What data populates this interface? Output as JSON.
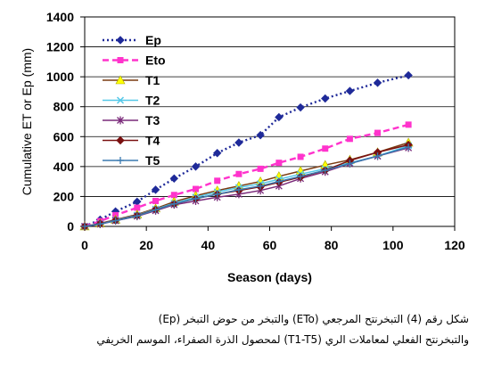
{
  "chart_data": {
    "type": "line",
    "xlabel": "Season (days)",
    "ylabel": "Cumulative ET or Ep (mm)",
    "xlim": [
      0,
      120
    ],
    "ylim": [
      0,
      1400
    ],
    "xticks": [
      "0",
      "20",
      "40",
      "60",
      "80",
      "100",
      "120"
    ],
    "yticks": [
      "0",
      "200",
      "400",
      "600",
      "800",
      "1000",
      "1200",
      "1400"
    ],
    "grid": "horizontal",
    "legend": "upper-left",
    "series": [
      {
        "name": "Ep",
        "color": "#1f2a99",
        "marker": "diamond",
        "dash": "dotted",
        "x": [
          0,
          5,
          10,
          17,
          23,
          29,
          36,
          43,
          50,
          57,
          63,
          70,
          78,
          86,
          95,
          105
        ],
        "y": [
          0,
          45,
          100,
          165,
          245,
          320,
          400,
          490,
          560,
          610,
          730,
          795,
          855,
          905,
          960,
          1010
        ]
      },
      {
        "name": "Eto",
        "color": "#ff33cc",
        "marker": "square",
        "dash": "dashed",
        "x": [
          0,
          5,
          10,
          17,
          23,
          29,
          36,
          43,
          50,
          57,
          63,
          70,
          78,
          86,
          95,
          105
        ],
        "y": [
          0,
          35,
          75,
          125,
          170,
          210,
          250,
          305,
          350,
          385,
          425,
          465,
          520,
          585,
          625,
          680
        ]
      },
      {
        "name": "T1",
        "color": "#7a3b10",
        "marker": "triangle",
        "dash": "solid",
        "x": [
          0,
          5,
          10,
          17,
          23,
          29,
          36,
          43,
          50,
          57,
          63,
          70,
          78,
          86,
          95,
          105
        ],
        "y": [
          0,
          20,
          45,
          80,
          120,
          165,
          205,
          240,
          270,
          300,
          335,
          370,
          410,
          445,
          495,
          560
        ]
      },
      {
        "name": "T2",
        "color": "#55c8e8",
        "marker": "x",
        "dash": "solid",
        "x": [
          0,
          5,
          10,
          17,
          23,
          29,
          36,
          43,
          50,
          57,
          63,
          70,
          78,
          86,
          95,
          105
        ],
        "y": [
          0,
          18,
          42,
          75,
          115,
          155,
          195,
          230,
          260,
          285,
          315,
          350,
          385,
          425,
          470,
          540
        ]
      },
      {
        "name": "T3",
        "color": "#7a2a7a",
        "marker": "star",
        "dash": "solid",
        "x": [
          0,
          5,
          10,
          17,
          23,
          29,
          36,
          43,
          50,
          57,
          63,
          70,
          78,
          86,
          95,
          105
        ],
        "y": [
          0,
          15,
          38,
          68,
          105,
          145,
          170,
          195,
          215,
          240,
          270,
          320,
          365,
          420,
          470,
          525
        ]
      },
      {
        "name": "T4",
        "color": "#7a1010",
        "marker": "diamond",
        "dash": "solid",
        "x": [
          0,
          5,
          10,
          17,
          23,
          29,
          36,
          43,
          50,
          57,
          63,
          70,
          78,
          86,
          95,
          105
        ],
        "y": [
          0,
          18,
          40,
          72,
          112,
          150,
          185,
          215,
          240,
          265,
          295,
          330,
          375,
          440,
          495,
          545
        ]
      },
      {
        "name": "T5",
        "color": "#3a7ab0",
        "marker": "plus",
        "dash": "solid",
        "x": [
          0,
          5,
          10,
          17,
          23,
          29,
          36,
          43,
          50,
          57,
          63,
          70,
          78,
          86,
          95,
          105
        ],
        "y": [
          0,
          16,
          38,
          70,
          110,
          150,
          185,
          215,
          245,
          270,
          300,
          335,
          375,
          420,
          470,
          530
        ]
      }
    ]
  },
  "caption": {
    "line1": "شكل رقم (4) التبخرنتح المرجعي (ETo) والتبخر من حوض التبخر (Ep)",
    "line2": "والتبخرنتح الفعلي لمعاملات الري (T1-T5) لمحصول الذرة الصفراء، الموسم الخريفي"
  }
}
